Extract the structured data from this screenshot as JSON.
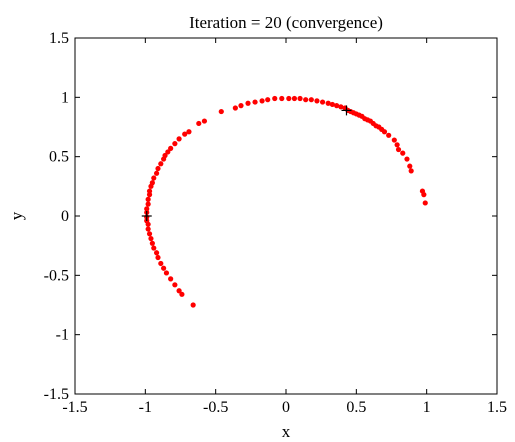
{
  "chart_data": {
    "type": "scatter",
    "title": "Iteration = 20 (convergence)",
    "xlabel": "x",
    "ylabel": "y",
    "xlim": [
      -1.5,
      1.5
    ],
    "ylim": [
      -1.5,
      1.5
    ],
    "x_ticks": [
      -1.5,
      -1,
      -0.5,
      0,
      0.5,
      1,
      1.5
    ],
    "y_ticks": [
      -1.5,
      -1,
      -0.5,
      0,
      0.5,
      1,
      1.5
    ],
    "x_tick_labels": [
      "-1.5",
      "-1",
      "-0.5",
      "0",
      "0.5",
      "1",
      "1.5"
    ],
    "y_tick_labels": [
      "-1.5",
      "-1",
      "-0.5",
      "0",
      "0.5",
      "1",
      "1.5"
    ],
    "grid": false,
    "box": true,
    "series": [
      {
        "marker": "dot",
        "color": "#ff0000",
        "points": [
          [
            -0.66,
            -0.75
          ],
          [
            -0.74,
            -0.66
          ],
          [
            -0.76,
            -0.63
          ],
          [
            -0.79,
            -0.58
          ],
          [
            -0.82,
            -0.53
          ],
          [
            -0.85,
            -0.48
          ],
          [
            -0.87,
            -0.44
          ],
          [
            -0.89,
            -0.4
          ],
          [
            -0.91,
            -0.35
          ],
          [
            -0.92,
            -0.31
          ],
          [
            -0.94,
            -0.27
          ],
          [
            -0.95,
            -0.23
          ],
          [
            -0.96,
            -0.19
          ],
          [
            -0.97,
            -0.15
          ],
          [
            -0.98,
            -0.11
          ],
          [
            -0.98,
            -0.07
          ],
          [
            -0.99,
            -0.04
          ],
          [
            -0.99,
            -0.01
          ],
          [
            -0.99,
            0.03
          ],
          [
            -0.99,
            0.06
          ],
          [
            -0.98,
            0.1
          ],
          [
            -0.98,
            0.14
          ],
          [
            -0.97,
            0.18
          ],
          [
            -0.97,
            0.21
          ],
          [
            -0.96,
            0.25
          ],
          [
            -0.95,
            0.28
          ],
          [
            -0.94,
            0.32
          ],
          [
            -0.92,
            0.36
          ],
          [
            -0.91,
            0.4
          ],
          [
            -0.89,
            0.44
          ],
          [
            -0.87,
            0.48
          ],
          [
            -0.86,
            0.51
          ],
          [
            -0.84,
            0.54
          ],
          [
            -0.82,
            0.57
          ],
          [
            -0.79,
            0.61
          ],
          [
            -0.76,
            0.65
          ],
          [
            -0.72,
            0.69
          ],
          [
            -0.69,
            0.71
          ],
          [
            -0.62,
            0.78
          ],
          [
            -0.58,
            0.8
          ],
          [
            -0.46,
            0.88
          ],
          [
            -0.36,
            0.91
          ],
          [
            -0.32,
            0.93
          ],
          [
            -0.27,
            0.95
          ],
          [
            -0.22,
            0.96
          ],
          [
            -0.17,
            0.97
          ],
          [
            -0.13,
            0.98
          ],
          [
            -0.08,
            0.99
          ],
          [
            -0.03,
            0.99
          ],
          [
            0.02,
            0.99
          ],
          [
            0.06,
            0.99
          ],
          [
            0.1,
            0.99
          ],
          [
            0.14,
            0.98
          ],
          [
            0.18,
            0.98
          ],
          [
            0.22,
            0.97
          ],
          [
            0.26,
            0.96
          ],
          [
            0.3,
            0.95
          ],
          [
            0.33,
            0.94
          ],
          [
            0.36,
            0.93
          ],
          [
            0.39,
            0.92
          ],
          [
            0.42,
            0.91
          ],
          [
            0.44,
            0.89
          ],
          [
            0.46,
            0.88
          ],
          [
            0.48,
            0.87
          ],
          [
            0.5,
            0.86
          ],
          [
            0.52,
            0.85
          ],
          [
            0.54,
            0.84
          ],
          [
            0.56,
            0.82
          ],
          [
            0.58,
            0.81
          ],
          [
            0.6,
            0.8
          ],
          [
            0.62,
            0.78
          ],
          [
            0.64,
            0.76
          ],
          [
            0.66,
            0.75
          ],
          [
            0.68,
            0.73
          ],
          [
            0.7,
            0.71
          ],
          [
            0.73,
            0.68
          ],
          [
            0.77,
            0.64
          ],
          [
            0.79,
            0.6
          ],
          [
            0.8,
            0.56
          ],
          [
            0.83,
            0.53
          ],
          [
            0.86,
            0.48
          ],
          [
            0.88,
            0.42
          ],
          [
            0.89,
            0.38
          ],
          [
            0.97,
            0.21
          ],
          [
            0.98,
            0.18
          ],
          [
            0.99,
            0.11
          ]
        ]
      }
    ],
    "centers": {
      "marker": "plus",
      "color": "#000000",
      "points": [
        [
          -0.99,
          0.0
        ],
        [
          0.43,
          0.89
        ]
      ]
    }
  }
}
